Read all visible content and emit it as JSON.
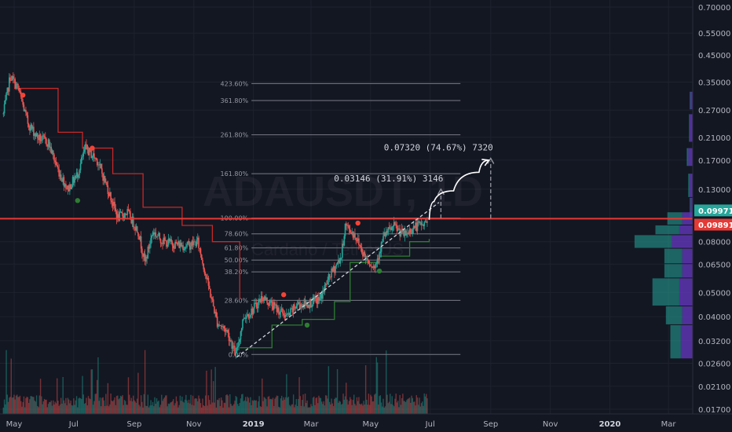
{
  "chart_data": {
    "type": "candlestick",
    "watermark": {
      "symbol": "ADAUSDT, 1D",
      "exchange": "Cardano / TetherUS"
    },
    "y_scale": "log",
    "price_ticks": [
      0.7,
      0.55,
      0.45,
      0.35,
      0.27,
      0.21,
      0.17,
      0.13,
      0.08,
      0.065,
      0.05,
      0.04,
      0.032,
      0.026,
      0.021,
      0.017
    ],
    "price_tick_labels": [
      "0.70000",
      "0.55000",
      "0.45000",
      "0.35000",
      "0.27000",
      "0.21000",
      "0.17000",
      "0.13000",
      "0.08000",
      "0.06500",
      "0.05000",
      "0.04000",
      "0.03200",
      "0.02600",
      "0.02100",
      "0.01700"
    ],
    "time_ticks": [
      {
        "label": "May",
        "date": "2018-05-01"
      },
      {
        "label": "Jul",
        "date": "2018-07-01"
      },
      {
        "label": "Sep",
        "date": "2018-09-01"
      },
      {
        "label": "Nov",
        "date": "2018-11-01"
      },
      {
        "label": "2019",
        "date": "2019-01-01"
      },
      {
        "label": "Mar",
        "date": "2019-03-01"
      },
      {
        "label": "May",
        "date": "2019-05-01"
      },
      {
        "label": "Jul",
        "date": "2019-07-01"
      },
      {
        "label": "Sep",
        "date": "2019-09-01"
      },
      {
        "label": "Nov",
        "date": "2019-11-01"
      },
      {
        "label": "2020",
        "date": "2020-01-01"
      },
      {
        "label": "Mar",
        "date": "2020-03-01"
      }
    ],
    "price_path": [
      [
        "2018-04-20",
        0.26
      ],
      [
        "2018-04-27",
        0.37
      ],
      [
        "2018-05-05",
        0.33
      ],
      [
        "2018-05-15",
        0.24
      ],
      [
        "2018-05-25",
        0.21
      ],
      [
        "2018-06-05",
        0.2
      ],
      [
        "2018-06-15",
        0.155
      ],
      [
        "2018-06-25",
        0.13
      ],
      [
        "2018-07-05",
        0.15
      ],
      [
        "2018-07-13",
        0.19
      ],
      [
        "2018-07-25",
        0.17
      ],
      [
        "2018-08-05",
        0.13
      ],
      [
        "2018-08-15",
        0.1
      ],
      [
        "2018-08-25",
        0.105
      ],
      [
        "2018-09-05",
        0.088
      ],
      [
        "2018-09-12",
        0.066
      ],
      [
        "2018-09-20",
        0.088
      ],
      [
        "2018-10-01",
        0.08
      ],
      [
        "2018-10-15",
        0.078
      ],
      [
        "2018-10-25",
        0.077
      ],
      [
        "2018-11-05",
        0.08
      ],
      [
        "2018-11-15",
        0.055
      ],
      [
        "2018-11-25",
        0.038
      ],
      [
        "2018-12-05",
        0.035
      ],
      [
        "2018-12-14",
        0.028
      ],
      [
        "2018-12-22",
        0.04
      ],
      [
        "2018-12-30",
        0.042
      ],
      [
        "2019-01-10",
        0.048
      ],
      [
        "2019-01-25",
        0.043
      ],
      [
        "2019-02-05",
        0.04
      ],
      [
        "2019-02-15",
        0.045
      ],
      [
        "2019-02-25",
        0.045
      ],
      [
        "2019-03-10",
        0.047
      ],
      [
        "2019-03-20",
        0.058
      ],
      [
        "2019-04-01",
        0.07
      ],
      [
        "2019-04-05",
        0.093
      ],
      [
        "2019-04-15",
        0.085
      ],
      [
        "2019-04-25",
        0.07
      ],
      [
        "2019-05-05",
        0.063
      ],
      [
        "2019-05-15",
        0.085
      ],
      [
        "2019-05-25",
        0.092
      ],
      [
        "2019-06-05",
        0.085
      ],
      [
        "2019-06-15",
        0.092
      ],
      [
        "2019-06-25",
        0.094
      ],
      [
        "2019-06-28",
        0.098
      ]
    ],
    "fib_levels": [
      {
        "label": "423.60%",
        "price": 0.345
      },
      {
        "label": "361.80%",
        "price": 0.295
      },
      {
        "label": "261.80%",
        "price": 0.215
      },
      {
        "label": "161.80%",
        "price": 0.15
      },
      {
        "label": "100.00%",
        "price": 0.0995
      },
      {
        "label": "78.60%",
        "price": 0.086
      },
      {
        "label": "61.80%",
        "price": 0.0755
      },
      {
        "label": "50.00%",
        "price": 0.0675
      },
      {
        "label": "38.20%",
        "price": 0.0605
      },
      {
        "label": "28.60%",
        "price": 0.0465
      },
      {
        "label": "0.00%",
        "price": 0.0282
      }
    ],
    "fib_range": {
      "start": "2018-12-30",
      "end": "2019-08-01"
    },
    "horizontal_line": {
      "price": 0.099,
      "color": "#e53935"
    },
    "trendline": {
      "from": [
        "2018-12-15",
        0.0275
      ],
      "to": [
        "2019-07-10",
        0.115
      ]
    },
    "projections": [
      {
        "label": "0.03146 (31.91%) 3146",
        "date": "2019-07-12",
        "from": 0.0993,
        "to": 0.13
      },
      {
        "label": "0.07320 (74.67%) 7320",
        "date": "2019-09-01",
        "from": 0.0993,
        "to": 0.173
      }
    ],
    "forecast_path": [
      [
        "2019-06-30",
        0.098
      ],
      [
        "2019-07-05",
        0.116
      ],
      [
        "2019-07-25",
        0.128
      ],
      [
        "2019-08-20",
        0.152
      ],
      [
        "2019-08-30",
        0.17
      ]
    ],
    "stop_lines": {
      "red": [
        [
          "2018-05-01",
          0.33
        ],
        [
          "2018-06-15",
          0.22
        ],
        [
          "2018-07-10",
          0.19
        ],
        [
          "2018-08-10",
          0.15
        ],
        [
          "2018-09-10",
          0.11
        ],
        [
          "2018-10-20",
          0.093
        ],
        [
          "2018-11-20",
          0.08
        ],
        [
          "2018-12-18",
          0.047
        ]
      ],
      "green_1": [
        [
          "2018-12-18",
          0.03
        ],
        [
          "2019-01-20",
          0.037
        ],
        [
          "2019-02-20",
          0.039
        ],
        [
          "2019-03-25",
          0.046
        ],
        [
          "2019-04-10",
          0.066
        ],
        [
          "2019-05-10",
          0.07
        ],
        [
          "2019-06-10",
          0.08
        ],
        [
          "2019-06-30",
          0.082
        ]
      ]
    },
    "signal_dots": [
      {
        "date": "2018-05-10",
        "price": 0.31,
        "color": "#f44336"
      },
      {
        "date": "2018-07-20",
        "price": 0.19,
        "color": "#f44336"
      },
      {
        "date": "2018-07-05",
        "price": 0.117,
        "color": "#2e7d32"
      },
      {
        "date": "2019-02-01",
        "price": 0.049,
        "color": "#f44336"
      },
      {
        "date": "2019-02-25",
        "price": 0.037,
        "color": "#2e7d32"
      },
      {
        "date": "2019-04-18",
        "price": 0.095,
        "color": "#f44336"
      },
      {
        "date": "2019-05-10",
        "price": 0.061,
        "color": "#2e7d32"
      }
    ],
    "volume_profile": [
      {
        "low": 0.27,
        "high": 0.32,
        "up": 3,
        "down": 1
      },
      {
        "low": 0.2,
        "high": 0.26,
        "up": 4,
        "down": 1
      },
      {
        "low": 0.16,
        "high": 0.19,
        "up": 6,
        "down": 2
      },
      {
        "low": 0.12,
        "high": 0.15,
        "up": 4,
        "down": 2
      },
      {
        "low": 0.1,
        "high": 0.12,
        "up": 3,
        "down": 1
      },
      {
        "low": 0.093,
        "high": 0.105,
        "up": 14,
        "down": 20
      },
      {
        "low": 0.085,
        "high": 0.093,
        "up": 18,
        "down": 32
      },
      {
        "low": 0.075,
        "high": 0.085,
        "up": 28,
        "down": 50
      },
      {
        "low": 0.065,
        "high": 0.075,
        "up": 14,
        "down": 24
      },
      {
        "low": 0.057,
        "high": 0.065,
        "up": 14,
        "down": 24
      },
      {
        "low": 0.044,
        "high": 0.057,
        "up": 18,
        "down": 36
      },
      {
        "low": 0.037,
        "high": 0.044,
        "up": 14,
        "down": 22
      },
      {
        "low": 0.027,
        "high": 0.037,
        "up": 16,
        "down": 14
      }
    ],
    "current_price_labels": [
      {
        "label": "0.09971",
        "price": 0.0997,
        "color": "#26a69a"
      },
      {
        "label": "0.09891",
        "price": 0.0989,
        "color": "#e53935"
      }
    ],
    "colors": {
      "up": "#26a69a",
      "down": "#ef5350",
      "background": "#131722",
      "grid": "#1e222d",
      "axis_text": "#b2b5be",
      "fib": "#787b86"
    }
  }
}
